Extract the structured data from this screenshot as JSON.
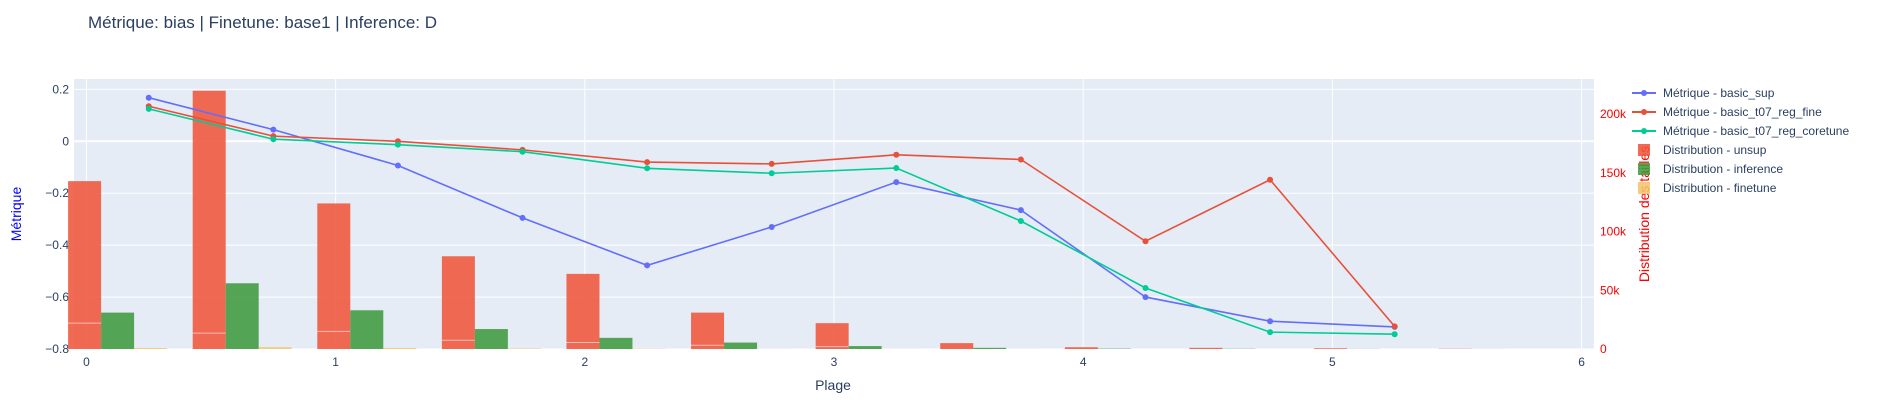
{
  "chart_data": {
    "type": "bar+line",
    "title": "Métrique: bias | Finetune: base1 | Inference: D",
    "xlabel": "Plage",
    "ylabel_left": "Métrique",
    "ylabel_right": "Distribution des tailles",
    "xlim": [
      -0.05,
      6.05
    ],
    "ylim_left": [
      -0.8,
      0.24
    ],
    "ylim_right": [
      0,
      230000
    ],
    "x_ticks": [
      0,
      1,
      2,
      3,
      4,
      5,
      6
    ],
    "y_left_ticks": [
      0.2,
      0,
      -0.2,
      -0.4,
      -0.6,
      -0.8
    ],
    "y_left_tick_labels": [
      "0.2",
      "0",
      "−0.2",
      "−0.4",
      "−0.6",
      "−0.8"
    ],
    "y_right_ticks": [
      0,
      50000,
      100000,
      150000,
      200000
    ],
    "y_right_tick_labels": [
      "0",
      "50k",
      "100k",
      "150k",
      "200k"
    ],
    "legend_position": "right",
    "bar_groups": [
      0.125,
      0.625,
      1.125,
      1.625,
      2.125,
      2.625,
      3.125,
      3.625,
      4.125,
      4.625,
      5.125,
      5.625
    ],
    "bar_series": [
      {
        "name": "Distribution - unsup",
        "color": "#ef553b",
        "inner_marks": [
          22000,
          13500,
          15000,
          7500,
          5500,
          3200,
          2000,
          0,
          0,
          0,
          0,
          0
        ],
        "values": [
          143000,
          220000,
          124000,
          79000,
          64000,
          31000,
          22000,
          5000,
          1500,
          1000,
          600,
          200
        ]
      },
      {
        "name": "Distribution - inference",
        "color": "#3f9b3f",
        "values": [
          31000,
          56000,
          33000,
          17000,
          9500,
          5500,
          2500,
          1000,
          300,
          200,
          100,
          50
        ]
      },
      {
        "name": "Distribution - finetune",
        "color": "#f4c46a",
        "values": [
          800,
          1500,
          900,
          400,
          200,
          100,
          50,
          20,
          10,
          5,
          5,
          5
        ]
      }
    ],
    "line_x": [
      0.25,
      0.75,
      1.25,
      1.75,
      2.25,
      2.75,
      3.25,
      3.75,
      4.25,
      4.75,
      5.25
    ],
    "line_series": [
      {
        "name": "Métrique - basic_sup",
        "color": "#636efa",
        "values": [
          0.168,
          0.045,
          -0.093,
          -0.295,
          -0.478,
          -0.33,
          -0.157,
          -0.265,
          -0.6,
          -0.693,
          -0.715
        ]
      },
      {
        "name": "Métrique - basic_t07_reg_fine",
        "color": "#e8503a",
        "values": [
          0.135,
          0.02,
          0.0,
          -0.033,
          -0.08,
          -0.087,
          -0.052,
          -0.07,
          -0.385,
          -0.148,
          -0.713
        ]
      },
      {
        "name": "Métrique - basic_t07_reg_coretune",
        "color": "#00cc96",
        "values": [
          0.125,
          0.008,
          -0.013,
          -0.04,
          -0.104,
          -0.123,
          -0.103,
          -0.307,
          -0.565,
          -0.735,
          -0.743
        ]
      }
    ]
  }
}
